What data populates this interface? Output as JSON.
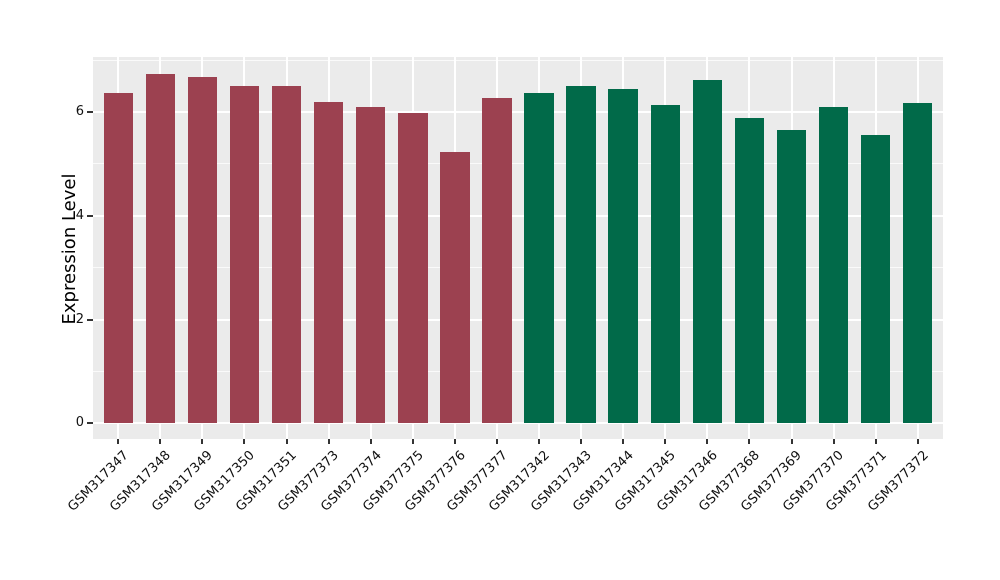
{
  "chart_data": {
    "type": "bar",
    "title": "",
    "xlabel": "",
    "ylabel": "Expression Level",
    "ylim": [
      0,
      7.06
    ],
    "yticks": [
      0,
      2,
      4,
      6
    ],
    "yminor_ticks": [
      1,
      3,
      5,
      7
    ],
    "legend": "none",
    "grid": "white major+minor horizontal lines and major vertical lines on gray panel",
    "panel_background": "#EBEBEB",
    "gridline_color": "#ffffff",
    "group_colors": {
      "maroon": "#9C4150",
      "green": "#016A49"
    },
    "categories": [
      "GSM317347",
      "GSM317348",
      "GSM317349",
      "GSM317350",
      "GSM317351",
      "GSM377373",
      "GSM377374",
      "GSM377375",
      "GSM377376",
      "GSM377377",
      "GSM317342",
      "GSM317343",
      "GSM317344",
      "GSM317345",
      "GSM317346",
      "GSM377368",
      "GSM377369",
      "GSM377370",
      "GSM377371",
      "GSM377372"
    ],
    "bars": [
      {
        "label": "GSM317347",
        "value": 6.36,
        "group": "maroon"
      },
      {
        "label": "GSM317348",
        "value": 6.73,
        "group": "maroon"
      },
      {
        "label": "GSM317349",
        "value": 6.68,
        "group": "maroon"
      },
      {
        "label": "GSM317350",
        "value": 6.49,
        "group": "maroon"
      },
      {
        "label": "GSM317351",
        "value": 6.5,
        "group": "maroon"
      },
      {
        "label": "GSM377373",
        "value": 6.2,
        "group": "maroon"
      },
      {
        "label": "GSM377374",
        "value": 6.1,
        "group": "maroon"
      },
      {
        "label": "GSM377375",
        "value": 5.97,
        "group": "maroon"
      },
      {
        "label": "GSM377376",
        "value": 5.23,
        "group": "maroon"
      },
      {
        "label": "GSM377377",
        "value": 6.26,
        "group": "maroon"
      },
      {
        "label": "GSM317342",
        "value": 6.36,
        "group": "green"
      },
      {
        "label": "GSM317343",
        "value": 6.49,
        "group": "green"
      },
      {
        "label": "GSM317344",
        "value": 6.45,
        "group": "green"
      },
      {
        "label": "GSM317345",
        "value": 6.13,
        "group": "green"
      },
      {
        "label": "GSM317346",
        "value": 6.62,
        "group": "green"
      },
      {
        "label": "GSM377368",
        "value": 5.89,
        "group": "green"
      },
      {
        "label": "GSM377369",
        "value": 5.65,
        "group": "green"
      },
      {
        "label": "GSM377370",
        "value": 6.1,
        "group": "green"
      },
      {
        "label": "GSM377371",
        "value": 5.56,
        "group": "green"
      },
      {
        "label": "GSM377372",
        "value": 6.18,
        "group": "green"
      }
    ]
  }
}
